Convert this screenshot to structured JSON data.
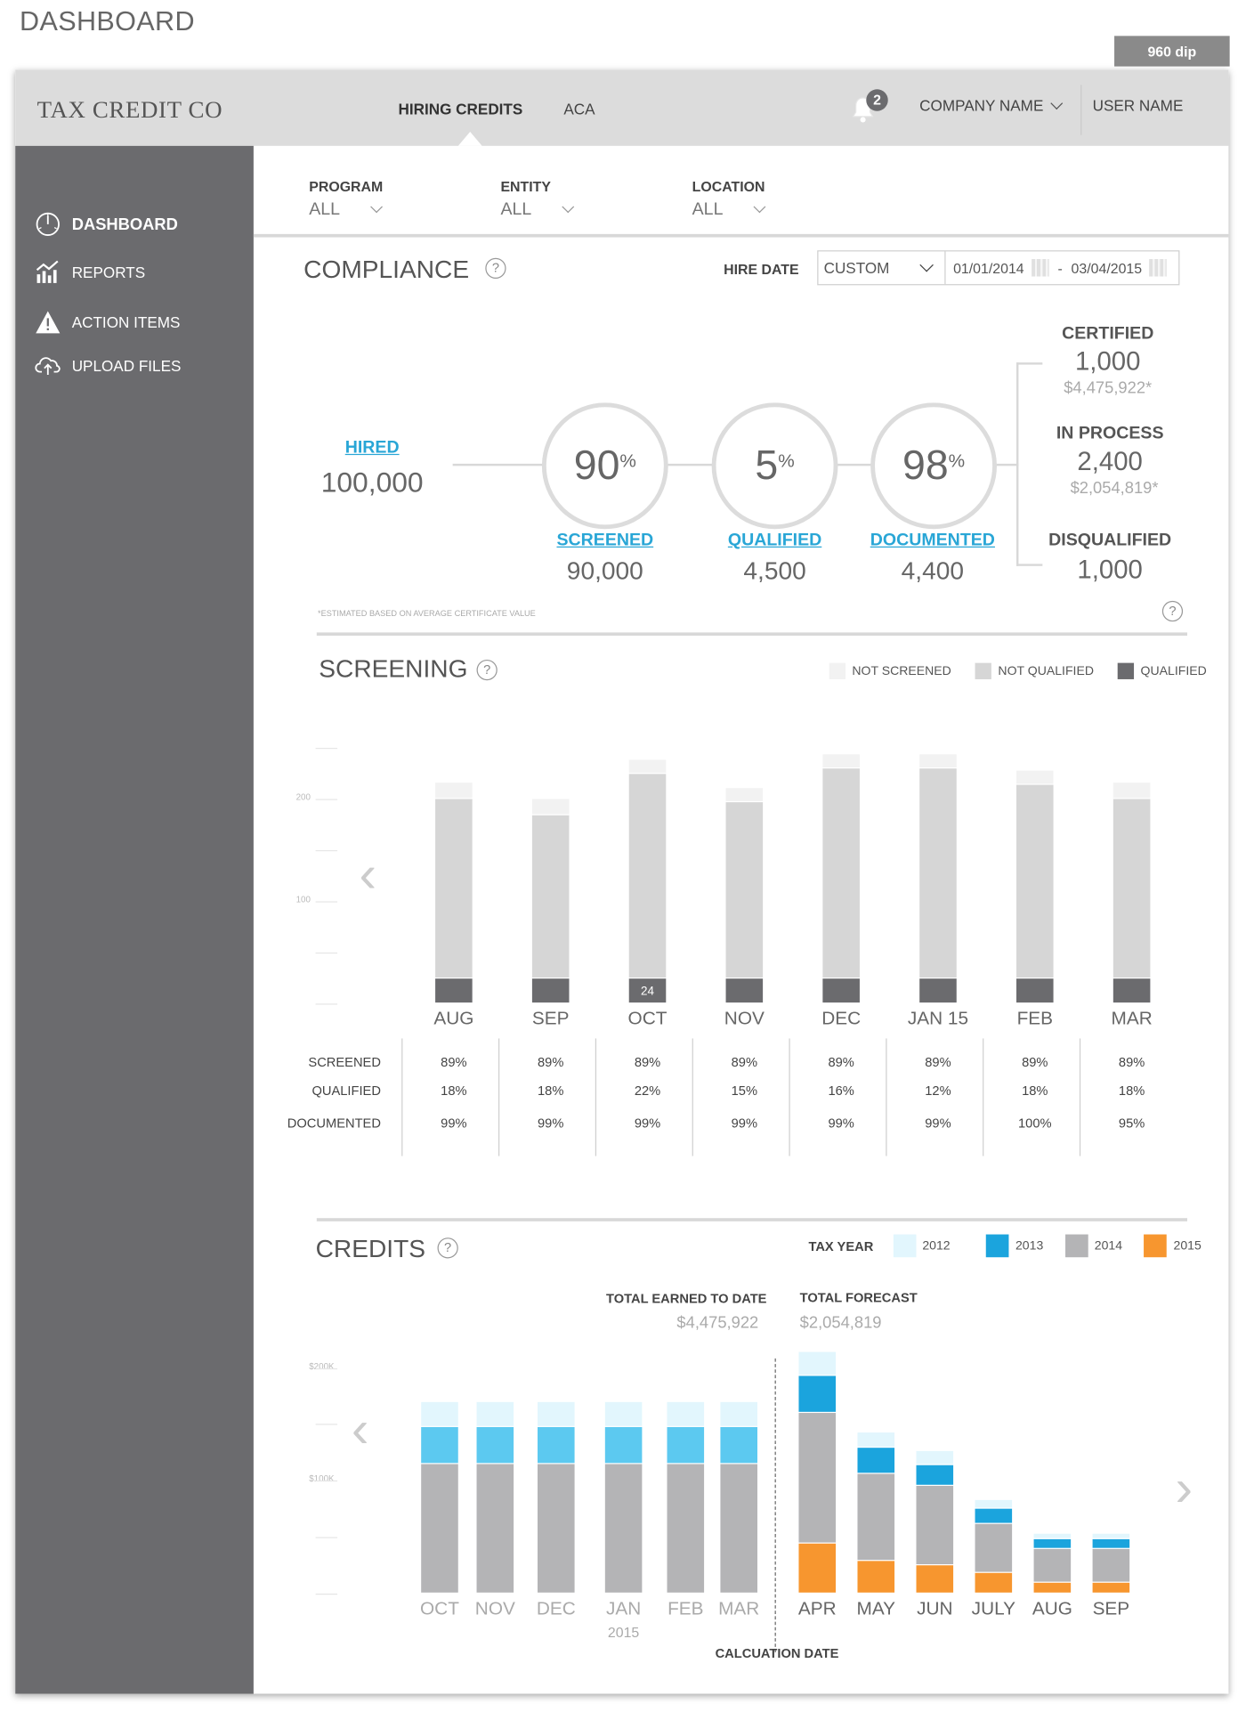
{
  "page_heading": "DASHBOARD",
  "width_badge": "960 dip",
  "header": {
    "brand": "TAX CREDIT CO",
    "nav": [
      "HIRING CREDITS",
      "ACA"
    ],
    "notification_count": "2",
    "company": "COMPANY NAME",
    "user": "USER NAME"
  },
  "sidebar": {
    "items": [
      {
        "label": "DASHBOARD",
        "icon": "dashboard-icon"
      },
      {
        "label": "REPORTS",
        "icon": "reports-icon"
      },
      {
        "label": "ACTION ITEMS",
        "icon": "warning-icon"
      },
      {
        "label": "UPLOAD FILES",
        "icon": "cloud-upload-icon"
      }
    ]
  },
  "filters": [
    {
      "label": "PROGRAM",
      "value": "ALL"
    },
    {
      "label": "ENTITY",
      "value": "ALL"
    },
    {
      "label": "LOCATION",
      "value": "ALL"
    }
  ],
  "compliance": {
    "title": "COMPLIANCE",
    "hire_date_label": "HIRE DATE",
    "range_select": "CUSTOM",
    "date_from": "01/01/2014",
    "date_sep": "-",
    "date_to": "03/04/2015",
    "hired": {
      "label": "HIRED",
      "value": "100,000"
    },
    "stages": [
      {
        "pct": "90",
        "label": "SCREENED",
        "value": "90,000"
      },
      {
        "pct": "5",
        "label": "QUALIFIED",
        "value": "4,500"
      },
      {
        "pct": "98",
        "label": "DOCUMENTED",
        "value": "4,400"
      }
    ],
    "pct_symbol": "%",
    "outcomes": {
      "certified": {
        "label": "CERTIFIED",
        "value": "1,000",
        "amount": "$4,475,922*"
      },
      "in_process": {
        "label": "IN PROCESS",
        "value": "2,400",
        "amount": "$2,054,819*"
      },
      "disqualified": {
        "label": "DISQUALIFIED",
        "value": "1,000"
      }
    },
    "footnote": "*ESTIMATED BASED ON AVERAGE CERTIFICATE VALUE"
  },
  "screening": {
    "title": "SCREENING",
    "legend": [
      "NOT SCREENED",
      "NOT QUALIFIED",
      "QUALIFIED"
    ],
    "row_labels": [
      "SCREENED",
      "QUALIFIED",
      "DOCUMENTED"
    ],
    "chart_data": {
      "type": "bar",
      "stacked": true,
      "categories": [
        "AUG",
        "SEP",
        "OCT",
        "NOV",
        "DEC",
        "JAN 15",
        "FEB",
        "MAR"
      ],
      "ylim": [
        0,
        250
      ],
      "yticks": [
        100,
        200
      ],
      "series": [
        {
          "name": "QUALIFIED",
          "color": "#6b6b6e",
          "values": [
            24,
            24,
            24,
            24,
            24,
            24,
            24,
            24
          ]
        },
        {
          "name": "NOT QUALIFIED",
          "color": "#d6d6d6",
          "values": [
            176,
            160,
            200,
            173,
            206,
            206,
            190,
            176
          ]
        },
        {
          "name": "NOT SCREENED",
          "color": "#f2f2f2",
          "values": [
            16,
            16,
            14,
            14,
            14,
            14,
            14,
            16
          ]
        }
      ],
      "data_labels": [
        {
          "category": "OCT",
          "text": "24"
        }
      ]
    },
    "table": [
      [
        "89%",
        "18%",
        "99%"
      ],
      [
        "89%",
        "18%",
        "99%"
      ],
      [
        "89%",
        "22%",
        "99%"
      ],
      [
        "89%",
        "15%",
        "99%"
      ],
      [
        "89%",
        "16%",
        "99%"
      ],
      [
        "89%",
        "12%",
        "99%"
      ],
      [
        "89%",
        "18%",
        "100%"
      ],
      [
        "89%",
        "18%",
        "95%"
      ]
    ]
  },
  "credits": {
    "title": "CREDITS",
    "legend_title": "TAX YEAR",
    "legend": [
      "2012",
      "2013",
      "2014",
      "2015"
    ],
    "earned_label": "TOTAL EARNED TO DATE",
    "earned_value": "$4,475,922",
    "forecast_label": "TOTAL FORECAST",
    "forecast_value": "$2,054,819",
    "calc_label": "CALCUATION DATE",
    "chart_data": {
      "type": "bar",
      "stacked": true,
      "categories": [
        "OCT",
        "NOV",
        "DEC",
        "JAN",
        "FEB",
        "MAR",
        "APR",
        "MAY",
        "JUN",
        "JULY",
        "AUG",
        "SEP"
      ],
      "category_sublabels": {
        "JAN": "2015"
      },
      "ylim": [
        0,
        240000
      ],
      "yticks": [
        100000,
        200000
      ],
      "ytick_labels": [
        "$100K",
        "$200K"
      ],
      "series": [
        {
          "name": "2015",
          "color": "#f7962f",
          "values": [
            0,
            0,
            0,
            0,
            0,
            0,
            44000,
            29000,
            25000,
            18000,
            10000,
            10000
          ]
        },
        {
          "name": "2014",
          "color": "#b4b4b6",
          "values": [
            115000,
            115000,
            115000,
            115000,
            115000,
            115000,
            116000,
            77000,
            70000,
            44000,
            30000,
            30000
          ]
        },
        {
          "name": "2013",
          "color": "#5cc9f0",
          "values": [
            33000,
            33000,
            33000,
            33000,
            33000,
            33000,
            33000,
            23000,
            19000,
            13000,
            8000,
            8000
          ]
        },
        {
          "name": "2012",
          "color": "#e2f6fd",
          "values": [
            22000,
            22000,
            22000,
            22000,
            22000,
            22000,
            21000,
            14000,
            12000,
            8000,
            5000,
            5000
          ]
        }
      ],
      "forecast_colors": {
        "2013": "#1ba4dd"
      }
    }
  }
}
